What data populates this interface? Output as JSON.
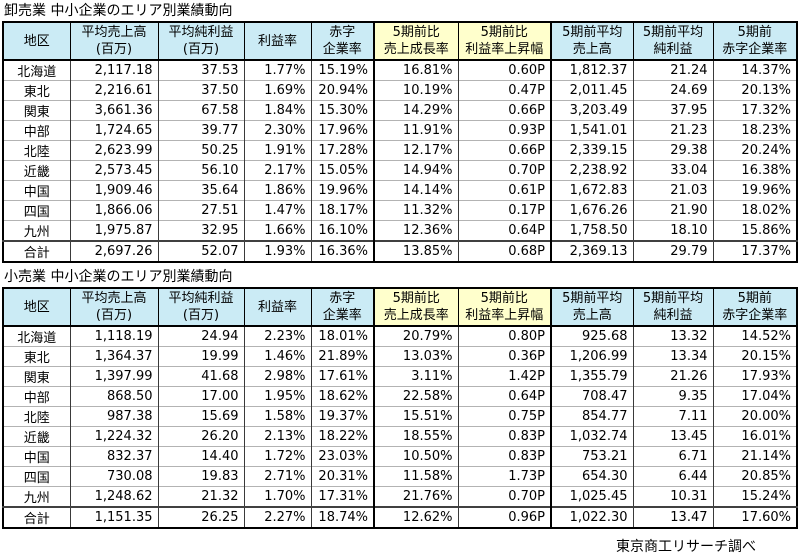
{
  "colors": {
    "header_bg": "#cbebf5",
    "highlight_bg": "#ffffcc",
    "outer_border": "#000000",
    "row_line": "#b3b3b3"
  },
  "footer": {
    "source": "東京商工リサーチ調べ"
  },
  "chart_data": [
    {
      "type": "table",
      "title": "卸売業 中小企業のエリア別業績動向",
      "columns": [
        {
          "id": "region",
          "lines": [
            "地区"
          ],
          "highlight": false
        },
        {
          "id": "avg-sales",
          "lines": [
            "平均売上高",
            "(百万)"
          ],
          "highlight": false
        },
        {
          "id": "avg-net-profit",
          "lines": [
            "平均純利益",
            "(百万)"
          ],
          "highlight": false
        },
        {
          "id": "profit-rate",
          "lines": [
            "利益率"
          ],
          "highlight": false
        },
        {
          "id": "loss-company-rate",
          "lines": [
            "赤字",
            "企業率"
          ],
          "highlight": false
        },
        {
          "id": "sales-growth-vs-5y",
          "lines": [
            "5期前比",
            "売上成長率"
          ],
          "highlight": true
        },
        {
          "id": "profit-rate-rise-vs-5y",
          "lines": [
            "5期前比",
            "利益率上昇幅"
          ],
          "highlight": true
        },
        {
          "id": "avg-sales-5y-ago",
          "lines": [
            "5期前平均",
            "売上高"
          ],
          "highlight": false
        },
        {
          "id": "avg-net-profit-5y-ago",
          "lines": [
            "5期前平均",
            "純利益"
          ],
          "highlight": false
        },
        {
          "id": "loss-company-rate-5y-ago",
          "lines": [
            "5期前",
            "赤字企業率"
          ],
          "highlight": false
        }
      ],
      "rows": [
        [
          "北海道",
          "2,117.18",
          "37.53",
          "1.77%",
          "15.19%",
          "16.81%",
          "0.60P",
          "1,812.37",
          "21.24",
          "14.37%"
        ],
        [
          "東北",
          "2,216.61",
          "37.50",
          "1.69%",
          "20.94%",
          "10.19%",
          "0.47P",
          "2,011.45",
          "24.69",
          "20.13%"
        ],
        [
          "関東",
          "3,661.36",
          "67.58",
          "1.84%",
          "15.30%",
          "14.29%",
          "0.66P",
          "3,203.49",
          "37.95",
          "17.32%"
        ],
        [
          "中部",
          "1,724.65",
          "39.77",
          "2.30%",
          "17.96%",
          "11.91%",
          "0.93P",
          "1,541.01",
          "21.23",
          "18.23%"
        ],
        [
          "北陸",
          "2,623.99",
          "50.25",
          "1.91%",
          "17.28%",
          "12.17%",
          "0.66P",
          "2,339.15",
          "29.38",
          "20.24%"
        ],
        [
          "近畿",
          "2,573.45",
          "56.10",
          "2.17%",
          "15.05%",
          "14.94%",
          "0.70P",
          "2,238.92",
          "33.04",
          "16.38%"
        ],
        [
          "中国",
          "1,909.46",
          "35.64",
          "1.86%",
          "19.96%",
          "14.14%",
          "0.61P",
          "1,672.83",
          "21.03",
          "19.96%"
        ],
        [
          "四国",
          "1,866.06",
          "27.51",
          "1.47%",
          "18.17%",
          "11.32%",
          "0.17P",
          "1,676.26",
          "21.90",
          "18.02%"
        ],
        [
          "九州",
          "1,975.87",
          "32.95",
          "1.66%",
          "16.10%",
          "12.36%",
          "0.64P",
          "1,758.50",
          "18.10",
          "15.86%"
        ],
        [
          "合計",
          "2,697.26",
          "52.07",
          "1.93%",
          "16.36%",
          "13.85%",
          "0.68P",
          "2,369.13",
          "29.79",
          "17.37%"
        ]
      ]
    },
    {
      "type": "table",
      "title": "小売業 中小企業のエリア別業績動向",
      "columns": [
        {
          "id": "region",
          "lines": [
            "地区"
          ],
          "highlight": false
        },
        {
          "id": "avg-sales",
          "lines": [
            "平均売上高",
            "(百万)"
          ],
          "highlight": false
        },
        {
          "id": "avg-net-profit",
          "lines": [
            "平均純利益",
            "(百万)"
          ],
          "highlight": false
        },
        {
          "id": "profit-rate",
          "lines": [
            "利益率"
          ],
          "highlight": false
        },
        {
          "id": "loss-company-rate",
          "lines": [
            "赤字",
            "企業率"
          ],
          "highlight": false
        },
        {
          "id": "sales-growth-vs-5y",
          "lines": [
            "5期前比",
            "売上成長率"
          ],
          "highlight": true
        },
        {
          "id": "profit-rate-rise-vs-5y",
          "lines": [
            "5期前比",
            "利益率上昇幅"
          ],
          "highlight": true
        },
        {
          "id": "avg-sales-5y-ago",
          "lines": [
            "5期前平均",
            "売上高"
          ],
          "highlight": false
        },
        {
          "id": "avg-net-profit-5y-ago",
          "lines": [
            "5期前平均",
            "純利益"
          ],
          "highlight": false
        },
        {
          "id": "loss-company-rate-5y-ago",
          "lines": [
            "5期前",
            "赤字企業率"
          ],
          "highlight": false
        }
      ],
      "rows": [
        [
          "北海道",
          "1,118.19",
          "24.94",
          "2.23%",
          "18.01%",
          "20.79%",
          "0.80P",
          "925.68",
          "13.32",
          "14.52%"
        ],
        [
          "東北",
          "1,364.37",
          "19.99",
          "1.46%",
          "21.89%",
          "13.03%",
          "0.36P",
          "1,206.99",
          "13.34",
          "20.15%"
        ],
        [
          "関東",
          "1,397.99",
          "41.68",
          "2.98%",
          "17.61%",
          "3.11%",
          "1.42P",
          "1,355.79",
          "21.26",
          "17.93%"
        ],
        [
          "中部",
          "868.50",
          "17.00",
          "1.95%",
          "18.62%",
          "22.58%",
          "0.64P",
          "708.47",
          "9.35",
          "17.04%"
        ],
        [
          "北陸",
          "987.38",
          "15.69",
          "1.58%",
          "19.37%",
          "15.51%",
          "0.75P",
          "854.77",
          "7.11",
          "20.00%"
        ],
        [
          "近畿",
          "1,224.32",
          "26.20",
          "2.13%",
          "18.22%",
          "18.55%",
          "0.83P",
          "1,032.74",
          "13.45",
          "16.01%"
        ],
        [
          "中国",
          "832.37",
          "14.40",
          "1.72%",
          "23.03%",
          "10.50%",
          "0.83P",
          "753.21",
          "6.71",
          "21.14%"
        ],
        [
          "四国",
          "730.08",
          "19.83",
          "2.71%",
          "20.31%",
          "11.58%",
          "1.73P",
          "654.30",
          "6.44",
          "20.85%"
        ],
        [
          "九州",
          "1,248.62",
          "21.32",
          "1.70%",
          "17.31%",
          "21.76%",
          "0.70P",
          "1,025.45",
          "10.31",
          "15.24%"
        ],
        [
          "合計",
          "1,151.35",
          "26.25",
          "2.27%",
          "18.74%",
          "12.62%",
          "0.96P",
          "1,022.30",
          "13.47",
          "17.60%"
        ]
      ]
    }
  ]
}
